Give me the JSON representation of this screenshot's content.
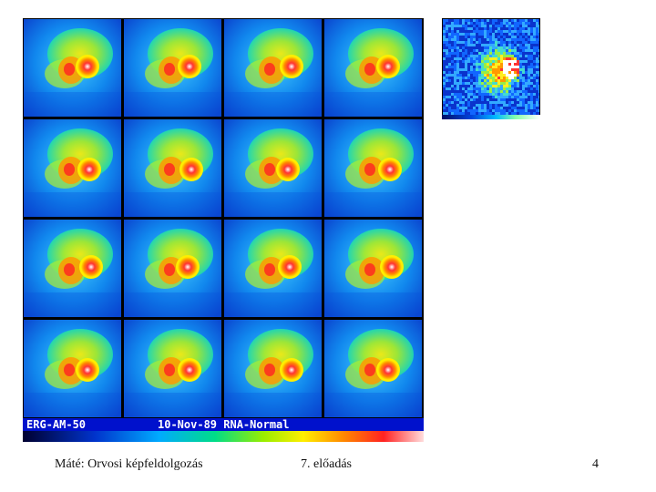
{
  "scan_panel": {
    "info_left": "ERG-AM-50",
    "info_right": "10-Nov-89 RNA-Normal",
    "frame_count": 16
  },
  "footer": {
    "left": "Máté: Orvosi képfeldolgozás",
    "center": "7. előadás",
    "right": "4"
  },
  "colors": {
    "background": "#ffffff",
    "info_bar": "#0011cc",
    "colormap": [
      "#000030",
      "#0033cc",
      "#00aaff",
      "#00dd88",
      "#99ee00",
      "#ffee00",
      "#ff8800",
      "#ff2222",
      "#ffdddd"
    ]
  }
}
